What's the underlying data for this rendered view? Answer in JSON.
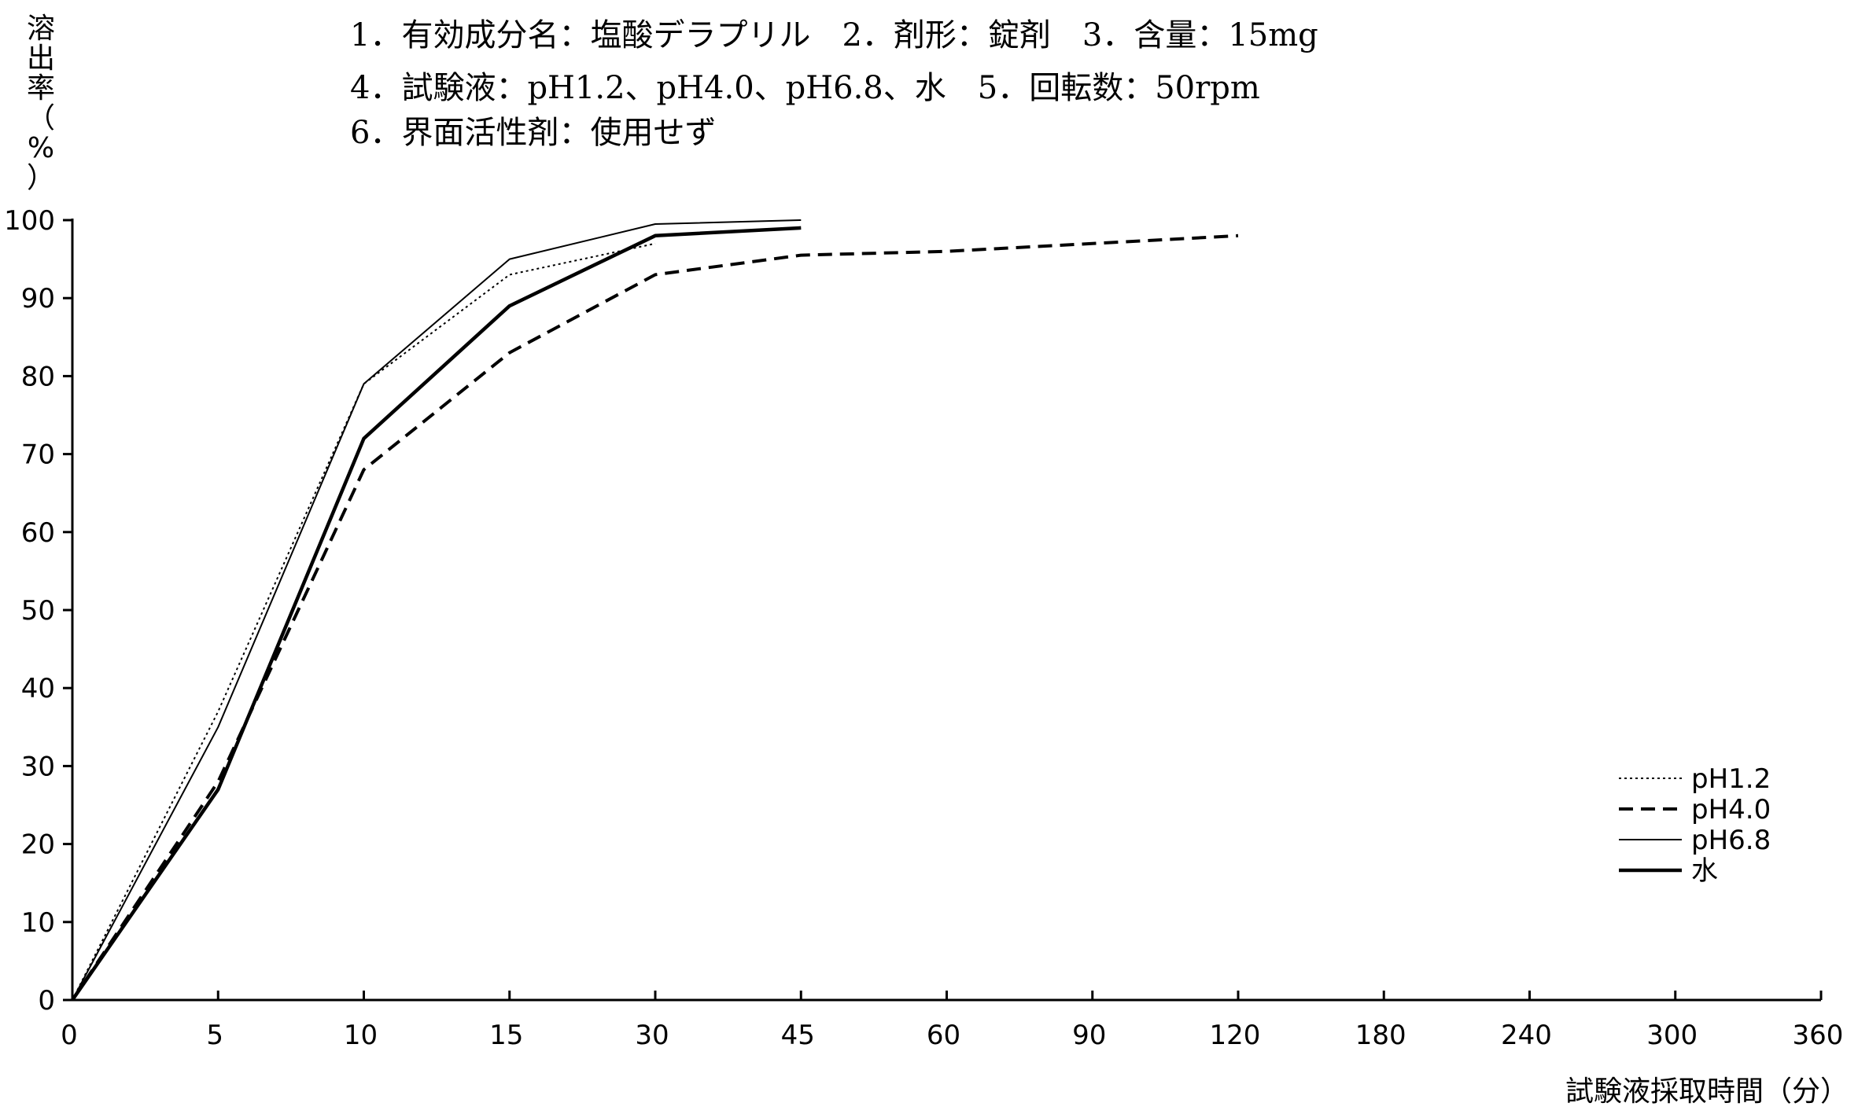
{
  "header": {
    "lines": [
      "1．有効成分名：塩酸デラプリル　2．剤形：錠剤　3．含量：15mg",
      "4．試験液：pH1.2、pH4.0、pH6.8、水　5．回転数：50rpm",
      "6．界面活性剤：使用せず"
    ]
  },
  "chart_data": {
    "type": "line",
    "title": "",
    "xlabel": "試験液採取時間（分）",
    "ylabel": "溶出率（%）",
    "ylabel_chars": [
      "溶",
      "出",
      "率",
      "（",
      "%",
      "）"
    ],
    "x_ticks": [
      "0",
      "5",
      "10",
      "15",
      "30",
      "45",
      "60",
      "90",
      "120",
      "180",
      "240",
      "300",
      "360"
    ],
    "x_scale": "categorical-equal-spacing",
    "y_ticks": [
      "0",
      "10",
      "20",
      "30",
      "40",
      "50",
      "60",
      "70",
      "80",
      "90",
      "100"
    ],
    "ylim": [
      0,
      100
    ],
    "grid": false,
    "legend_position": "bottom-right",
    "series": [
      {
        "name": "pH1.2",
        "line_style": "dotted",
        "x": [
          0,
          5,
          10,
          15,
          30
        ],
        "values": [
          0,
          37,
          79,
          93,
          97
        ]
      },
      {
        "name": "pH4.0",
        "line_style": "dashed",
        "x": [
          0,
          5,
          10,
          15,
          30,
          45,
          60,
          90,
          120
        ],
        "values": [
          0,
          28,
          68,
          83,
          93,
          95.5,
          96,
          97,
          98
        ]
      },
      {
        "name": "pH6.8",
        "line_style": "solid-thin",
        "x": [
          0,
          5,
          10,
          15,
          30,
          45
        ],
        "values": [
          0,
          35,
          79,
          95,
          99.5,
          100
        ]
      },
      {
        "name": "水",
        "line_style": "solid-thick",
        "x": [
          0,
          5,
          10,
          15,
          30,
          45
        ],
        "values": [
          0,
          27,
          72,
          89,
          98,
          99
        ]
      }
    ]
  }
}
